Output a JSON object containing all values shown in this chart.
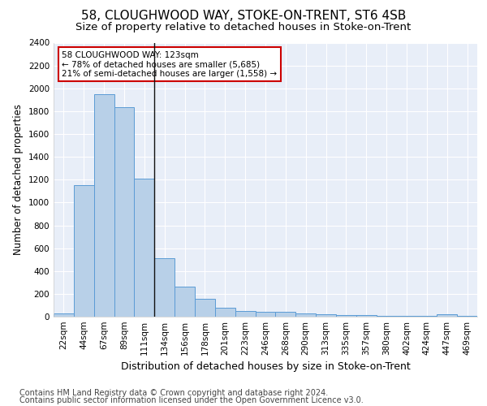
{
  "title": "58, CLOUGHWOOD WAY, STOKE-ON-TRENT, ST6 4SB",
  "subtitle": "Size of property relative to detached houses in Stoke-on-Trent",
  "xlabel": "Distribution of detached houses by size in Stoke-on-Trent",
  "ylabel": "Number of detached properties",
  "categories": [
    "22sqm",
    "44sqm",
    "67sqm",
    "89sqm",
    "111sqm",
    "134sqm",
    "156sqm",
    "178sqm",
    "201sqm",
    "223sqm",
    "246sqm",
    "268sqm",
    "290sqm",
    "313sqm",
    "335sqm",
    "357sqm",
    "380sqm",
    "402sqm",
    "424sqm",
    "447sqm",
    "469sqm"
  ],
  "values": [
    28,
    1150,
    1950,
    1835,
    1210,
    510,
    265,
    155,
    80,
    50,
    45,
    40,
    25,
    20,
    15,
    12,
    8,
    5,
    5,
    20,
    5
  ],
  "bar_color": "#b8d0e8",
  "bar_edge_color": "#5b9bd5",
  "vline_x": 4.5,
  "vline_color": "#111111",
  "annotation_text": "58 CLOUGHWOOD WAY: 123sqm\n← 78% of detached houses are smaller (5,685)\n21% of semi-detached houses are larger (1,558) →",
  "annotation_box_color": "#ffffff",
  "annotation_box_edge_color": "#cc0000",
  "ylim": [
    0,
    2400
  ],
  "yticks": [
    0,
    200,
    400,
    600,
    800,
    1000,
    1200,
    1400,
    1600,
    1800,
    2000,
    2200,
    2400
  ],
  "footer_line1": "Contains HM Land Registry data © Crown copyright and database right 2024.",
  "footer_line2": "Contains public sector information licensed under the Open Government Licence v3.0.",
  "bg_color": "#ffffff",
  "plot_bg_color": "#e8eef8",
  "grid_color": "#ffffff",
  "title_fontsize": 11,
  "subtitle_fontsize": 9.5,
  "xlabel_fontsize": 9,
  "ylabel_fontsize": 8.5,
  "tick_fontsize": 7.5,
  "footer_fontsize": 7,
  "annotation_fontsize": 7.5
}
